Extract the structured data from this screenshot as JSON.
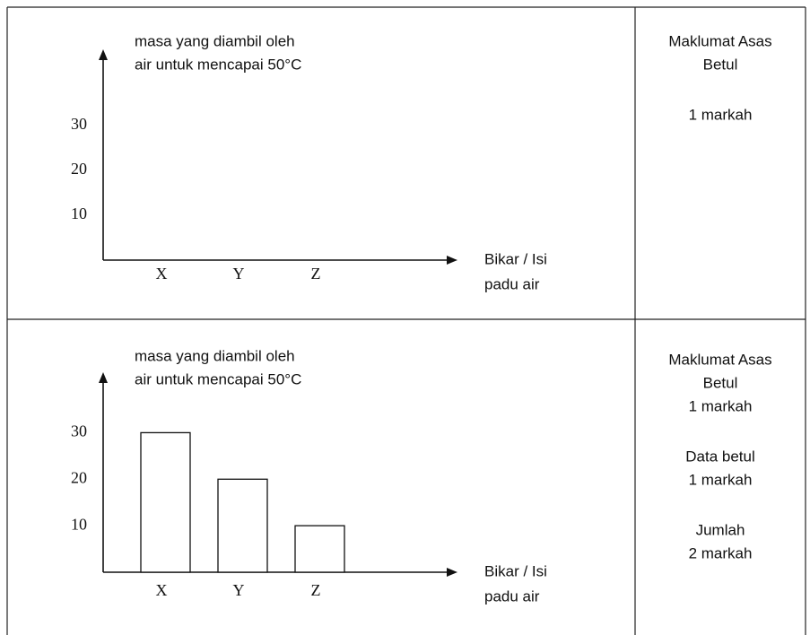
{
  "chart_data": [
    {
      "type": "bar",
      "y_label": [
        "masa yang diambil oleh",
        "air untuk mencapai 50°C"
      ],
      "x_label": [
        "Bikar / Isi",
        "padu air"
      ],
      "categories": [
        "X",
        "Y",
        "Z"
      ],
      "ylim": [
        0,
        47
      ],
      "yticks": [
        10,
        20,
        30
      ]
    },
    {
      "type": "bar",
      "y_label": [
        "masa yang diambil oleh",
        "air untuk mencapai 50°C"
      ],
      "x_label": [
        "Bikar / Isi",
        "padu air"
      ],
      "categories": [
        "X",
        "Y",
        "Z"
      ],
      "values": [
        30,
        20,
        10
      ],
      "color": "#ffffff",
      "ylim": [
        0,
        43
      ],
      "yticks": [
        10,
        20,
        30
      ]
    }
  ],
  "rows": [
    {
      "notes": [
        [
          "Maklumat Asas",
          "Betul"
        ],
        [
          "1 markah"
        ]
      ]
    },
    {
      "notes": [
        [
          "Maklumat Asas",
          "Betul",
          "1 markah"
        ],
        [
          "Data betul",
          "1 markah"
        ],
        [
          "Jumlah",
          "2 markah"
        ]
      ]
    }
  ]
}
